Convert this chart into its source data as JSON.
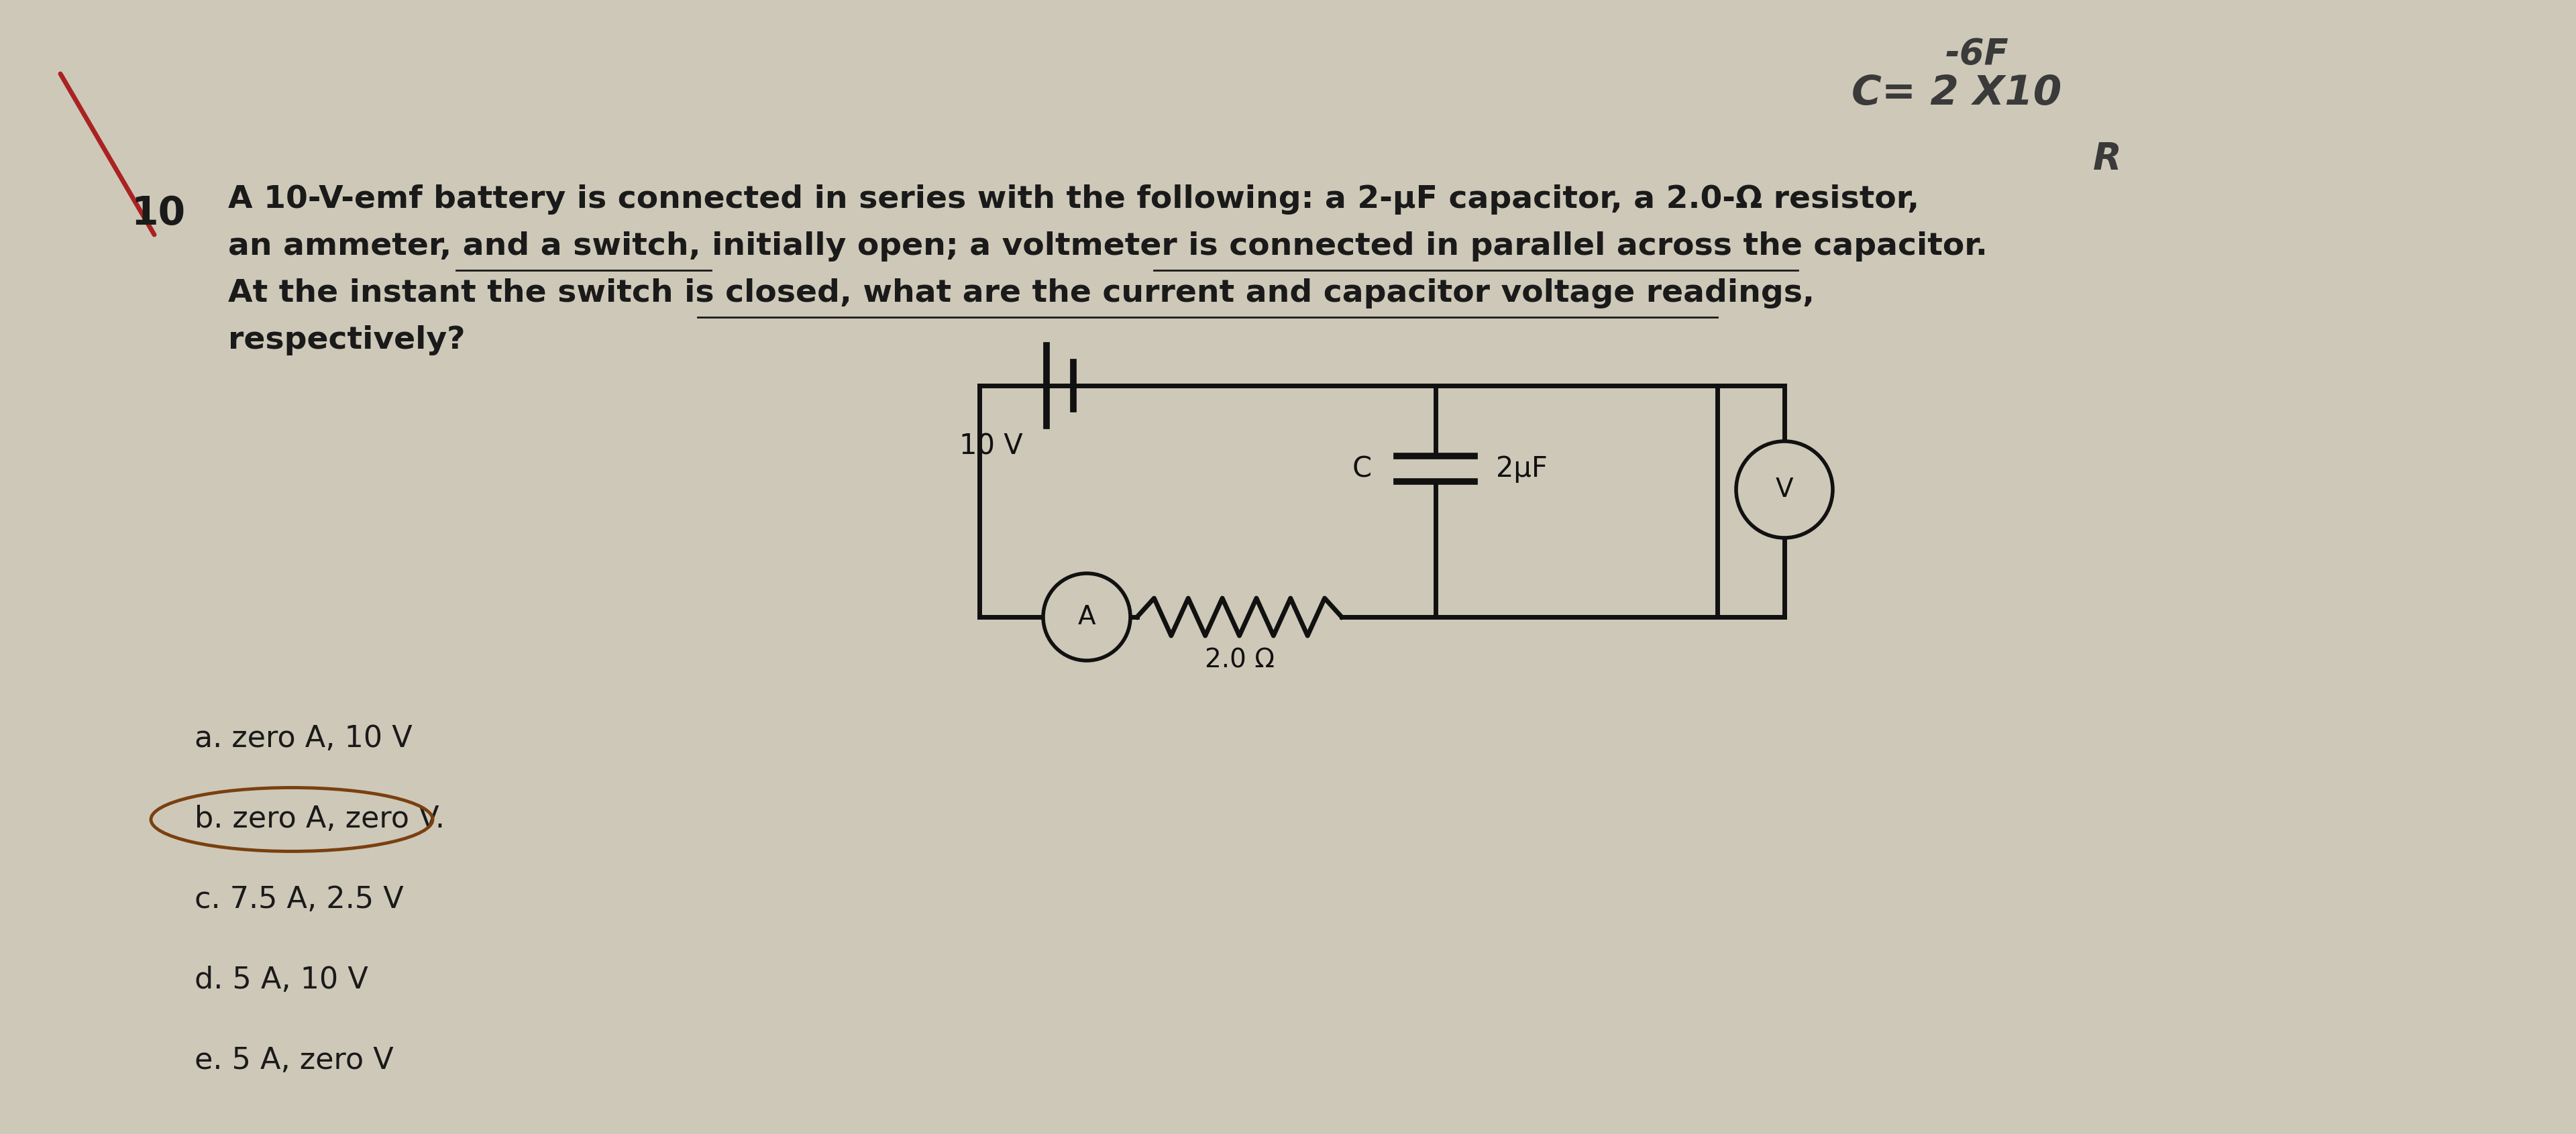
{
  "bg_color": "#cec8b8",
  "text_color": "#1a1a1a",
  "circuit_color": "#111111",
  "question_number": "10",
  "question_text_line1": "A 10-V-emf battery is connected in series with the following: a 2-μF capacitor, a 2.0-Ω resistor,",
  "question_text_line2": "an ammeter, and a switch, initially open; a voltmeter is connected in parallel across the capacitor.",
  "question_text_line3": "At the instant the switch is closed, what are the current and capacitor voltage readings,",
  "question_text_line4": "respectively?",
  "battery_label": "10 V",
  "capacitor_label": "C",
  "capacitor_value": "2μF",
  "resistor_label": "2.0 Ω",
  "ammeter_label": "A",
  "voltmeter_label": "V",
  "choices": [
    "a. zero A, 10 V",
    "b. zero A, zero V.",
    "c. 7.5 A, 2.5 V",
    "d. 5 A, 10 V",
    "e. 5 A, zero V"
  ],
  "hw_line1": "-6F",
  "hw_line2": "C= 2 X10",
  "hw_line3": "R",
  "font_size_question": 34,
  "font_size_choices": 32,
  "fig_width": 38.4,
  "fig_height": 16.91
}
